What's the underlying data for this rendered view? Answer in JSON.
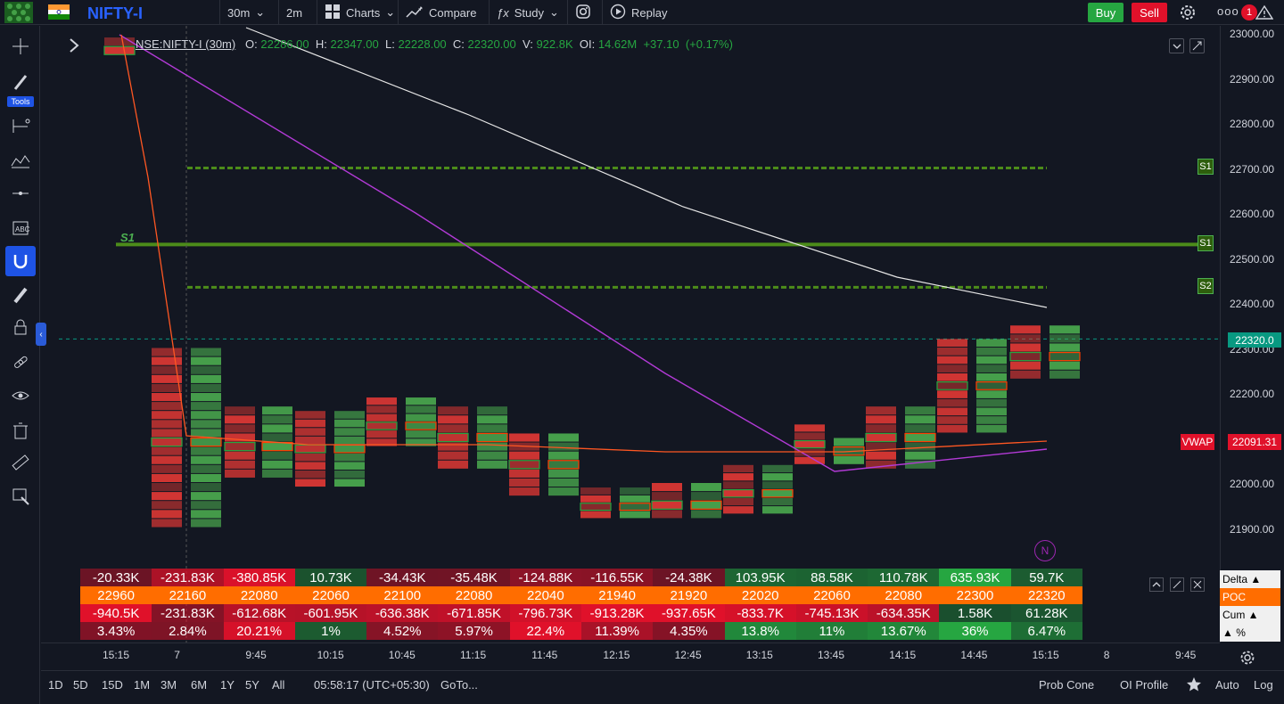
{
  "topbar": {
    "symbol": "NIFTY-I",
    "interval": "30m",
    "interval2": "2m",
    "charts": "Charts",
    "compare": "Compare",
    "study": "Study",
    "replay": "Replay",
    "buy": "Buy",
    "sell": "Sell",
    "more": "ooo",
    "alert_count": "1"
  },
  "leftbar": {
    "tools_label": "Tools"
  },
  "legend": {
    "symbol": "NSE:NIFTY-I (30m)",
    "o_label": "O:",
    "o_val": "22286.00",
    "h_label": "H:",
    "h_val": "22347.00",
    "l_label": "L:",
    "l_val": "22228.00",
    "c_label": "C:",
    "c_val": "22320.00",
    "v_label": "V:",
    "v_val": "922.8K",
    "oi_label": "OI:",
    "oi_val": "14.62M",
    "chg": "+37.10",
    "chg_pct": "(+0.17%)"
  },
  "price_axis": [
    "23000.00",
    "22900.00",
    "22800.00",
    "22700.00",
    "22600.00",
    "22500.00",
    "22400.00",
    "22300.00",
    "22200.00",
    "22100.00",
    "22000.00",
    "21900.00"
  ],
  "last_price": "22320.0",
  "vwap_label": "VWAP",
  "vwap_price": "22091.31",
  "levels": {
    "s1_left": "S1",
    "s1_a": "S1",
    "s1_b": "S1",
    "s2": "S2",
    "marker_n": "N"
  },
  "footprint_table": {
    "rows": [
      {
        "name": "Delta ▲",
        "values": [
          "-20.33K",
          "-231.83K",
          "-380.85K",
          "10.73K",
          "-34.43K",
          "-35.48K",
          "-124.88K",
          "-116.55K",
          "-24.38K",
          "103.95K",
          "88.58K",
          "110.78K",
          "635.93K",
          "59.7K"
        ]
      },
      {
        "name": "POC",
        "values": [
          "22960",
          "22160",
          "22080",
          "22060",
          "22100",
          "22080",
          "22040",
          "21940",
          "21920",
          "22020",
          "22060",
          "22080",
          "22300",
          "22320"
        ]
      },
      {
        "name": "Cum ▲",
        "values": [
          "-940.5K",
          "-231.83K",
          "-612.68K",
          "-601.95K",
          "-636.38K",
          "-671.85K",
          "-796.73K",
          "-913.28K",
          "-937.65K",
          "-833.7K",
          "-745.13K",
          "-634.35K",
          "1.58K",
          "61.28K"
        ]
      },
      {
        "name": "▲ %",
        "values": [
          "3.43%",
          "2.84%",
          "20.21%",
          "1%",
          "4.52%",
          "5.97%",
          "22.4%",
          "11.39%",
          "4.35%",
          "13.8%",
          "11%",
          "13.67%",
          "36%",
          "6.47%"
        ]
      }
    ]
  },
  "time_axis": [
    "15:15",
    "7",
    "9:45",
    "10:15",
    "10:45",
    "11:15",
    "11:45",
    "12:15",
    "12:45",
    "13:15",
    "13:45",
    "14:15",
    "14:45",
    "15:15",
    "8",
    "9:45"
  ],
  "bottombar": {
    "ranges": [
      "1D",
      "5D",
      "15D",
      "1M",
      "3M",
      "6M",
      "1Y",
      "5Y",
      "All"
    ],
    "clock": "05:58:17 (UTC+05:30)",
    "goto": "GoTo...",
    "prob_cone": "Prob Cone",
    "oi_profile": "OI Profile",
    "auto": "Auto",
    "log": "Log"
  },
  "colors": {
    "bg": "#131722",
    "red": "#e0112a",
    "green": "#26a641",
    "orange": "#ff6d00",
    "accent": "#2962ff"
  }
}
